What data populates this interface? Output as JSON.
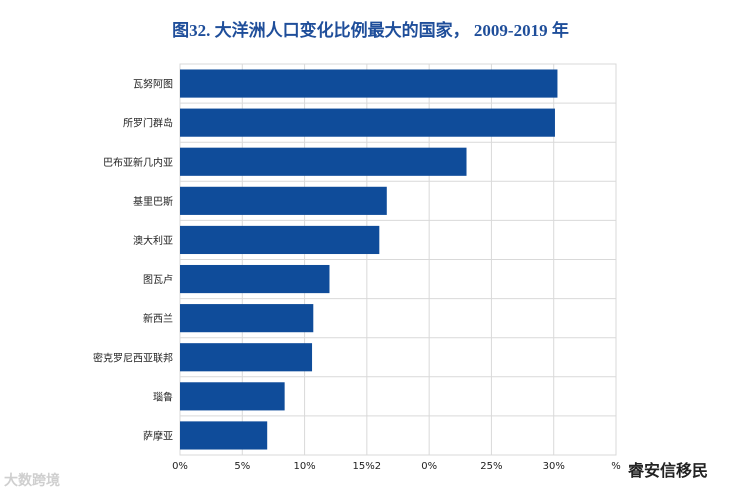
{
  "title": "图32. 大洋洲人口变化比例最大的国家，    2009-2019 年",
  "watermarks": {
    "left": "大数跨境",
    "right": "睿安信移民"
  },
  "chart_data": {
    "type": "bar",
    "orientation": "horizontal",
    "categories": [
      "瓦努阿图",
      "所罗门群岛",
      "巴布亚新几内亚",
      "基里巴斯",
      "澳大利亚",
      "图瓦卢",
      "新西兰",
      "密克罗尼西亚联邦",
      "瑙鲁",
      "萨摩亚"
    ],
    "values": [
      30.3,
      30.1,
      23.0,
      16.6,
      16.0,
      12.0,
      10.7,
      10.6,
      8.4,
      7.0
    ],
    "xlim": [
      0,
      35
    ],
    "x_tick_labels": [
      "0%",
      "5%",
      "10%",
      "15%2",
      "0%",
      "25%",
      "30%",
      "%"
    ],
    "grid": true,
    "bar_color": "#0f4c9a"
  }
}
